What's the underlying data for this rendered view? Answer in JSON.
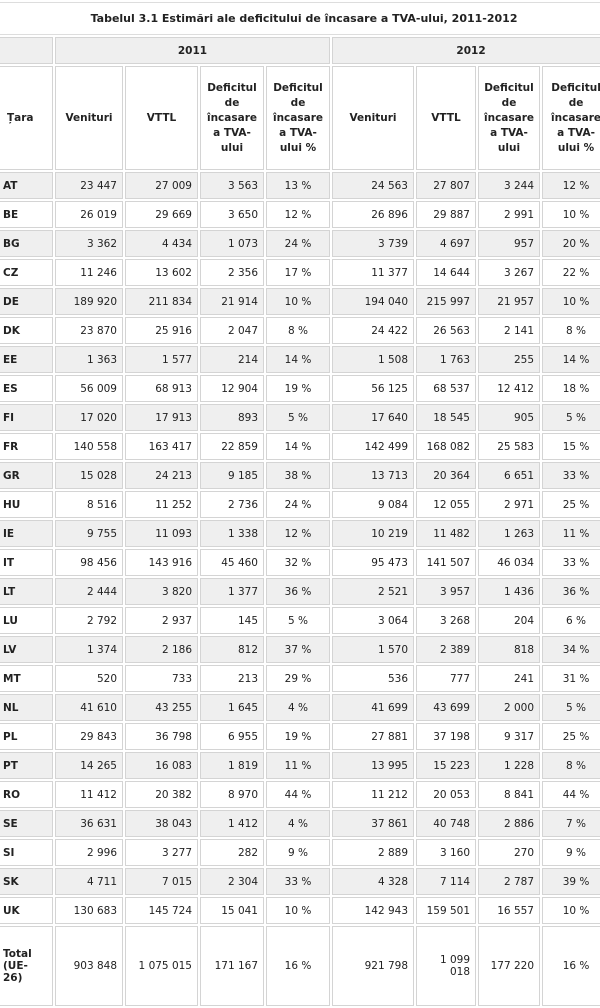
{
  "title": "Tabelul 3.1 Estimări ale deficitului de încasare a TVA-ului, 2011-2012",
  "years": [
    "2011",
    "2012"
  ],
  "headers": {
    "country": "Țara",
    "revenue": "Venituri",
    "vttl": "VTTL",
    "gap": "Deficitul de încasare a TVA-ului",
    "gap_pct": "Deficitul de încasare a TVA-ului %"
  },
  "rows": [
    [
      "AT",
      "23 447",
      "27 009",
      "3 563",
      "13 %",
      "24 563",
      "27 807",
      "3 244",
      "12 %"
    ],
    [
      "BE",
      "26 019",
      "29 669",
      "3 650",
      "12 %",
      "26 896",
      "29 887",
      "2 991",
      "10 %"
    ],
    [
      "BG",
      "3 362",
      "4 434",
      "1 073",
      "24 %",
      "3 739",
      "4 697",
      "957",
      "20 %"
    ],
    [
      "CZ",
      "11 246",
      "13 602",
      "2 356",
      "17 %",
      "11 377",
      "14 644",
      "3 267",
      "22 %"
    ],
    [
      "DE",
      "189 920",
      "211 834",
      "21 914",
      "10 %",
      "194 040",
      "215 997",
      "21 957",
      "10 %"
    ],
    [
      "DK",
      "23 870",
      "25 916",
      "2 047",
      "8 %",
      "24 422",
      "26 563",
      "2 141",
      "8 %"
    ],
    [
      "EE",
      "1 363",
      "1 577",
      "214",
      "14 %",
      "1 508",
      "1 763",
      "255",
      "14 %"
    ],
    [
      "ES",
      "56 009",
      "68 913",
      "12 904",
      "19 %",
      "56 125",
      "68 537",
      "12 412",
      "18 %"
    ],
    [
      "FI",
      "17 020",
      "17 913",
      "893",
      "5 %",
      "17 640",
      "18 545",
      "905",
      "5 %"
    ],
    [
      "FR",
      "140 558",
      "163 417",
      "22 859",
      "14 %",
      "142 499",
      "168 082",
      "25 583",
      "15 %"
    ],
    [
      "GR",
      "15 028",
      "24 213",
      "9 185",
      "38 %",
      "13 713",
      "20 364",
      "6 651",
      "33 %"
    ],
    [
      "HU",
      "8 516",
      "11 252",
      "2 736",
      "24 %",
      "9 084",
      "12 055",
      "2 971",
      "25 %"
    ],
    [
      "IE",
      "9 755",
      "11 093",
      "1 338",
      "12 %",
      "10 219",
      "11 482",
      "1 263",
      "11 %"
    ],
    [
      "IT",
      "98 456",
      "143 916",
      "45 460",
      "32 %",
      "95 473",
      "141 507",
      "46 034",
      "33 %"
    ],
    [
      "LT",
      "2 444",
      "3 820",
      "1 377",
      "36 %",
      "2 521",
      "3 957",
      "1 436",
      "36 %"
    ],
    [
      "LU",
      "2 792",
      "2 937",
      "145",
      "5 %",
      "3 064",
      "3 268",
      "204",
      "6 %"
    ],
    [
      "LV",
      "1 374",
      "2 186",
      "812",
      "37 %",
      "1 570",
      "2 389",
      "818",
      "34 %"
    ],
    [
      "MT",
      "520",
      "733",
      "213",
      "29 %",
      "536",
      "777",
      "241",
      "31 %"
    ],
    [
      "NL",
      "41 610",
      "43 255",
      "1 645",
      "4 %",
      "41 699",
      "43 699",
      "2 000",
      "5 %"
    ],
    [
      "PL",
      "29 843",
      "36 798",
      "6 955",
      "19 %",
      "27 881",
      "37 198",
      "9 317",
      "25 %"
    ],
    [
      "PT",
      "14 265",
      "16 083",
      "1 819",
      "11 %",
      "13 995",
      "15 223",
      "1 228",
      "8 %"
    ],
    [
      "RO",
      "11 412",
      "20 382",
      "8 970",
      "44 %",
      "11 212",
      "20 053",
      "8 841",
      "44 %"
    ],
    [
      "SE",
      "36 631",
      "38 043",
      "1 412",
      "4 %",
      "37 861",
      "40 748",
      "2 886",
      "7 %"
    ],
    [
      "SI",
      "2 996",
      "3 277",
      "282",
      "9 %",
      "2 889",
      "3 160",
      "270",
      "9 %"
    ],
    [
      "SK",
      "4 711",
      "7 015",
      "2 304",
      "33 %",
      "4 328",
      "7 114",
      "2 787",
      "39 %"
    ],
    [
      "UK",
      "130 683",
      "145 724",
      "15 041",
      "10 %",
      "142 943",
      "159 501",
      "16 557",
      "10 %"
    ]
  ],
  "total": [
    "Total (UE-26)",
    "903 848",
    "1 075 015",
    "171 167",
    "16 %",
    "921 798",
    "1 099 018",
    "177 220",
    "16 %"
  ]
}
